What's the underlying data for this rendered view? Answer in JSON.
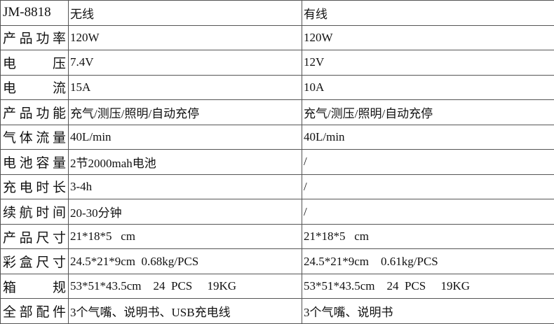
{
  "table": {
    "rows": [
      [
        "JM-8818",
        "无线",
        "有线"
      ],
      [
        "产品功率",
        "120W",
        "120W"
      ],
      [
        "电 压",
        "7.4V",
        "12V"
      ],
      [
        "电 流",
        "15A",
        "10A"
      ],
      [
        "产品功能",
        "充气/测压/照明/自动充停",
        "充气/测压/照明/自动充停"
      ],
      [
        "气体流量",
        "40L/min",
        "40L/min"
      ],
      [
        "电池容量",
        "2节2000mah电池",
        "/"
      ],
      [
        "充电时长",
        "3-4h",
        "/"
      ],
      [
        "续航时间",
        "20-30分钟",
        "/"
      ],
      [
        "产品尺寸",
        "21*18*5   cm",
        "21*18*5   cm"
      ],
      [
        "彩盒尺寸",
        "24.5*21*9cm  0.68kg/PCS",
        "24.5*21*9cm    0.61kg/PCS"
      ],
      [
        "箱 规",
        "53*51*43.5cm    24  PCS     19KG",
        "53*51*43.5cm    24  PCS     19KG"
      ],
      [
        "全部配件",
        "3个气嘴、说明书、USB充电线",
        "3个气嘴、说明书"
      ]
    ]
  }
}
